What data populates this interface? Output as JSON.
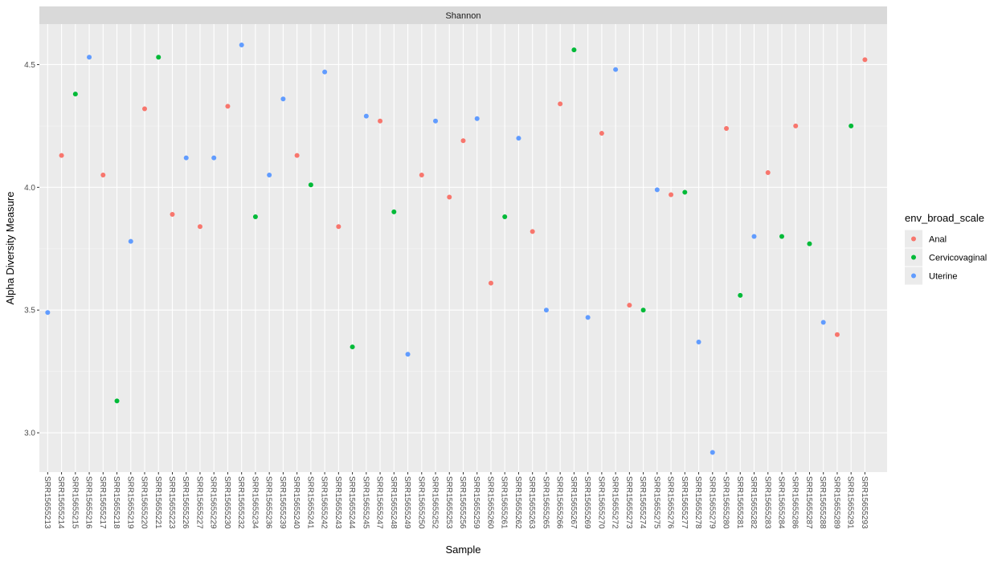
{
  "chart_data": {
    "type": "scatter",
    "panel_title": "Shannon",
    "xlabel": "Sample",
    "ylabel": "Alpha Diversity Measure",
    "ylim": [
      2.84,
      4.665
    ],
    "y_ticks": [
      3.0,
      3.5,
      4.0,
      4.5
    ],
    "y_tick_labels": [
      "3.0",
      "3.5",
      "4.0",
      "4.5"
    ],
    "grid": true,
    "legend": {
      "title": "env_broad_scale",
      "position": "right",
      "entries": [
        {
          "name": "Anal",
          "color": "#F8766D"
        },
        {
          "name": "Cervicovaginal",
          "color": "#00BA38"
        },
        {
          "name": "Uterine",
          "color": "#619CFF"
        }
      ]
    },
    "categories": [
      "SRR15655213",
      "SRR15655214",
      "SRR15655215",
      "SRR15655216",
      "SRR15655217",
      "SRR15655218",
      "SRR15655219",
      "SRR15655220",
      "SRR15655221",
      "SRR15655223",
      "SRR15655226",
      "SRR15655227",
      "SRR15655229",
      "SRR15655230",
      "SRR15655232",
      "SRR15655234",
      "SRR15655236",
      "SRR15655239",
      "SRR15655240",
      "SRR15655241",
      "SRR15655242",
      "SRR15655243",
      "SRR15655244",
      "SRR15655245",
      "SRR15655247",
      "SRR15655248",
      "SRR15655249",
      "SRR15655250",
      "SRR15655252",
      "SRR15655253",
      "SRR15655256",
      "SRR15655259",
      "SRR15655260",
      "SRR15655261",
      "SRR15655262",
      "SRR15655263",
      "SRR15655265",
      "SRR15655266",
      "SRR15655267",
      "SRR15655269",
      "SRR15655270",
      "SRR15655272",
      "SRR15655273",
      "SRR15655274",
      "SRR15655275",
      "SRR15655276",
      "SRR15655277",
      "SRR15655278",
      "SRR15655279",
      "SRR15655280",
      "SRR15655281",
      "SRR15655282",
      "SRR15655283",
      "SRR15655284",
      "SRR15655286",
      "SRR15655287",
      "SRR15655288",
      "SRR15655289",
      "SRR15655291",
      "SRR15655293"
    ],
    "points": [
      {
        "x": "SRR15655213",
        "y": 3.49,
        "group": "Uterine"
      },
      {
        "x": "SRR15655214",
        "y": 4.13,
        "group": "Anal"
      },
      {
        "x": "SRR15655215",
        "y": 4.38,
        "group": "Cervicovaginal"
      },
      {
        "x": "SRR15655216",
        "y": 4.53,
        "group": "Uterine"
      },
      {
        "x": "SRR15655217",
        "y": 4.05,
        "group": "Anal"
      },
      {
        "x": "SRR15655218",
        "y": 3.13,
        "group": "Cervicovaginal"
      },
      {
        "x": "SRR15655219",
        "y": 3.78,
        "group": "Uterine"
      },
      {
        "x": "SRR15655220",
        "y": 4.32,
        "group": "Anal"
      },
      {
        "x": "SRR15655221",
        "y": 4.53,
        "group": "Cervicovaginal"
      },
      {
        "x": "SRR15655223",
        "y": 3.89,
        "group": "Anal"
      },
      {
        "x": "SRR15655226",
        "y": 4.12,
        "group": "Uterine"
      },
      {
        "x": "SRR15655227",
        "y": 3.84,
        "group": "Anal"
      },
      {
        "x": "SRR15655229",
        "y": 4.12,
        "group": "Uterine"
      },
      {
        "x": "SRR15655230",
        "y": 4.33,
        "group": "Anal"
      },
      {
        "x": "SRR15655232",
        "y": 4.58,
        "group": "Uterine"
      },
      {
        "x": "SRR15655234",
        "y": 3.88,
        "group": "Cervicovaginal"
      },
      {
        "x": "SRR15655236",
        "y": 4.05,
        "group": "Uterine"
      },
      {
        "x": "SRR15655239",
        "y": 4.36,
        "group": "Uterine"
      },
      {
        "x": "SRR15655240",
        "y": 4.13,
        "group": "Anal"
      },
      {
        "x": "SRR15655241",
        "y": 4.01,
        "group": "Cervicovaginal"
      },
      {
        "x": "SRR15655242",
        "y": 4.47,
        "group": "Uterine"
      },
      {
        "x": "SRR15655243",
        "y": 3.84,
        "group": "Anal"
      },
      {
        "x": "SRR15655244",
        "y": 3.35,
        "group": "Cervicovaginal"
      },
      {
        "x": "SRR15655245",
        "y": 4.29,
        "group": "Uterine"
      },
      {
        "x": "SRR15655247",
        "y": 4.27,
        "group": "Anal"
      },
      {
        "x": "SRR15655248",
        "y": 3.9,
        "group": "Cervicovaginal"
      },
      {
        "x": "SRR15655249",
        "y": 3.32,
        "group": "Uterine"
      },
      {
        "x": "SRR15655250",
        "y": 4.05,
        "group": "Anal"
      },
      {
        "x": "SRR15655252",
        "y": 4.27,
        "group": "Uterine"
      },
      {
        "x": "SRR15655253",
        "y": 3.96,
        "group": "Anal"
      },
      {
        "x": "SRR15655256",
        "y": 4.19,
        "group": "Anal"
      },
      {
        "x": "SRR15655259",
        "y": 4.28,
        "group": "Uterine"
      },
      {
        "x": "SRR15655260",
        "y": 3.61,
        "group": "Anal"
      },
      {
        "x": "SRR15655261",
        "y": 3.88,
        "group": "Cervicovaginal"
      },
      {
        "x": "SRR15655262",
        "y": 4.2,
        "group": "Uterine"
      },
      {
        "x": "SRR15655263",
        "y": 3.82,
        "group": "Anal"
      },
      {
        "x": "SRR15655265",
        "y": 3.5,
        "group": "Uterine"
      },
      {
        "x": "SRR15655266",
        "y": 4.34,
        "group": "Anal"
      },
      {
        "x": "SRR15655267",
        "y": 4.56,
        "group": "Cervicovaginal"
      },
      {
        "x": "SRR15655269",
        "y": 3.47,
        "group": "Uterine"
      },
      {
        "x": "SRR15655270",
        "y": 4.22,
        "group": "Anal"
      },
      {
        "x": "SRR15655272",
        "y": 4.48,
        "group": "Uterine"
      },
      {
        "x": "SRR15655273",
        "y": 3.52,
        "group": "Anal"
      },
      {
        "x": "SRR15655274",
        "y": 3.5,
        "group": "Cervicovaginal"
      },
      {
        "x": "SRR15655275",
        "y": 3.99,
        "group": "Uterine"
      },
      {
        "x": "SRR15655276",
        "y": 3.97,
        "group": "Anal"
      },
      {
        "x": "SRR15655277",
        "y": 3.98,
        "group": "Cervicovaginal"
      },
      {
        "x": "SRR15655278",
        "y": 3.37,
        "group": "Uterine"
      },
      {
        "x": "SRR15655279",
        "y": 2.92,
        "group": "Uterine"
      },
      {
        "x": "SRR15655280",
        "y": 4.24,
        "group": "Anal"
      },
      {
        "x": "SRR15655281",
        "y": 3.56,
        "group": "Cervicovaginal"
      },
      {
        "x": "SRR15655282",
        "y": 3.8,
        "group": "Uterine"
      },
      {
        "x": "SRR15655283",
        "y": 4.06,
        "group": "Anal"
      },
      {
        "x": "SRR15655284",
        "y": 3.8,
        "group": "Cervicovaginal"
      },
      {
        "x": "SRR15655286",
        "y": 4.25,
        "group": "Anal"
      },
      {
        "x": "SRR15655287",
        "y": 3.77,
        "group": "Cervicovaginal"
      },
      {
        "x": "SRR15655288",
        "y": 3.45,
        "group": "Uterine"
      },
      {
        "x": "SRR15655289",
        "y": 3.4,
        "group": "Anal"
      },
      {
        "x": "SRR15655291",
        "y": 4.25,
        "group": "Cervicovaginal"
      },
      {
        "x": "SRR15655293",
        "y": 4.52,
        "group": "Anal"
      }
    ]
  }
}
